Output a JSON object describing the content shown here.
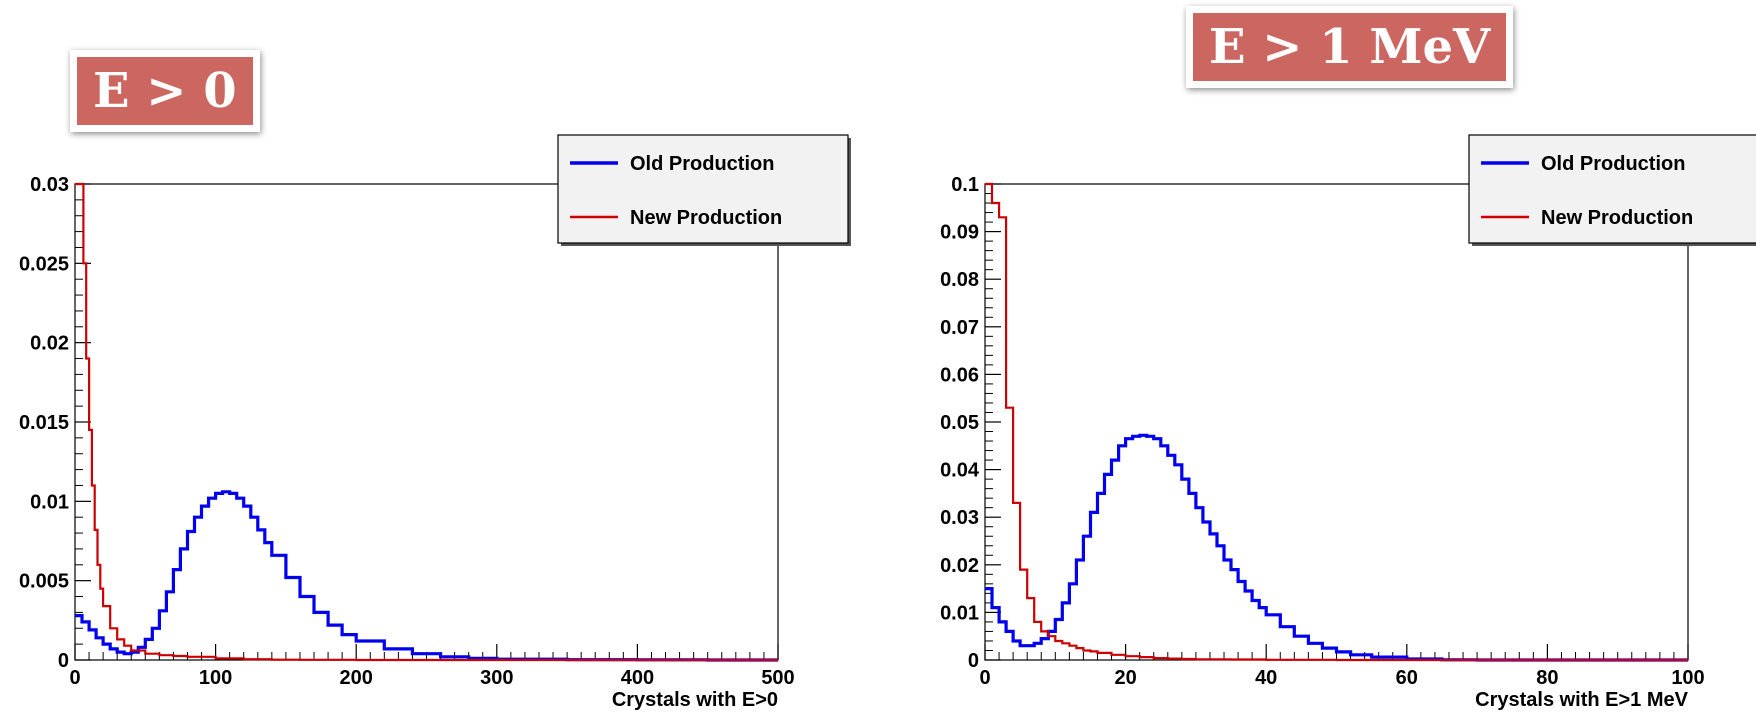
{
  "chart_data": [
    {
      "type": "line",
      "title": "E > 0",
      "xlabel": "Crystals with E>0",
      "ylabel": "",
      "xlim": [
        0,
        500
      ],
      "ylim": [
        0,
        0.03
      ],
      "xticks": [
        "0",
        "100",
        "200",
        "300",
        "400",
        "500"
      ],
      "yticks": [
        "0",
        "0.005",
        "0.01",
        "0.015",
        "0.02",
        "0.025",
        "0.03"
      ],
      "grid": false,
      "legend_position": "top-right",
      "series": [
        {
          "name": "Old Production",
          "color": "#0000ee",
          "x": [
            0,
            5,
            10,
            15,
            20,
            25,
            30,
            35,
            40,
            45,
            50,
            55,
            60,
            65,
            70,
            75,
            80,
            85,
            90,
            95,
            100,
            105,
            110,
            115,
            120,
            125,
            130,
            135,
            140,
            150,
            160,
            170,
            180,
            190,
            200,
            220,
            240,
            260,
            280,
            300,
            350,
            400,
            450,
            500
          ],
          "values": [
            0.0028,
            0.0024,
            0.0019,
            0.0014,
            0.001,
            0.0007,
            0.0005,
            0.0004,
            0.0005,
            0.0008,
            0.0013,
            0.002,
            0.0031,
            0.0043,
            0.0057,
            0.007,
            0.0081,
            0.009,
            0.0097,
            0.0102,
            0.0105,
            0.0106,
            0.0105,
            0.0102,
            0.0097,
            0.009,
            0.0082,
            0.0074,
            0.0066,
            0.0052,
            0.004,
            0.003,
            0.0022,
            0.0016,
            0.0012,
            0.0007,
            0.0004,
            0.0002,
            0.0001,
            5e-05,
            2e-05,
            1e-05,
            0,
            0
          ]
        },
        {
          "name": "New Production",
          "color": "#cc0000",
          "x": [
            0,
            2,
            4,
            6,
            8,
            10,
            12,
            14,
            16,
            18,
            20,
            25,
            30,
            35,
            40,
            50,
            60,
            70,
            80,
            100,
            120,
            140,
            160,
            200,
            300,
            400,
            500
          ],
          "values": [
            0.03,
            0.03,
            0.03,
            0.025,
            0.019,
            0.0145,
            0.011,
            0.0082,
            0.006,
            0.0045,
            0.0034,
            0.002,
            0.0013,
            0.0009,
            0.0006,
            0.0004,
            0.0003,
            0.00025,
            0.0002,
            0.0001,
            5e-05,
            2e-05,
            1e-05,
            0,
            0,
            0,
            0
          ]
        }
      ]
    },
    {
      "type": "line",
      "title": "E > 1 MeV",
      "xlabel": "Crystals with E>1 MeV",
      "ylabel": "",
      "xlim": [
        0,
        100
      ],
      "ylim": [
        0,
        0.1
      ],
      "xticks": [
        "0",
        "20",
        "40",
        "60",
        "80",
        "100"
      ],
      "yticks": [
        "0",
        "0.01",
        "0.02",
        "0.03",
        "0.04",
        "0.05",
        "0.06",
        "0.07",
        "0.08",
        "0.09",
        "0.1"
      ],
      "grid": false,
      "legend_position": "top-right",
      "series": [
        {
          "name": "Old Production",
          "color": "#0000ee",
          "x": [
            0,
            1,
            2,
            3,
            4,
            5,
            6,
            7,
            8,
            9,
            10,
            11,
            12,
            13,
            14,
            15,
            16,
            17,
            18,
            19,
            20,
            21,
            22,
            23,
            24,
            25,
            26,
            27,
            28,
            29,
            30,
            31,
            32,
            33,
            34,
            35,
            36,
            37,
            38,
            39,
            40,
            42,
            44,
            46,
            48,
            50,
            52,
            55,
            60,
            65,
            70
          ],
          "values": [
            0.015,
            0.011,
            0.008,
            0.006,
            0.004,
            0.003,
            0.003,
            0.0035,
            0.0045,
            0.006,
            0.0085,
            0.012,
            0.016,
            0.021,
            0.026,
            0.031,
            0.035,
            0.039,
            0.042,
            0.045,
            0.0465,
            0.047,
            0.0472,
            0.047,
            0.0465,
            0.045,
            0.043,
            0.041,
            0.038,
            0.035,
            0.032,
            0.029,
            0.0265,
            0.024,
            0.021,
            0.019,
            0.0165,
            0.0145,
            0.0125,
            0.011,
            0.0095,
            0.007,
            0.005,
            0.0035,
            0.0025,
            0.0017,
            0.0011,
            0.0006,
            0.0002,
            5e-05,
            0
          ]
        },
        {
          "name": "New Production",
          "color": "#cc0000",
          "x": [
            0,
            1,
            2,
            3,
            4,
            5,
            6,
            7,
            8,
            9,
            10,
            11,
            12,
            13,
            14,
            15,
            16,
            18,
            20,
            22,
            24,
            26,
            28,
            30,
            35,
            40,
            50,
            60,
            70,
            80,
            90,
            100
          ],
          "values": [
            0.1,
            0.096,
            0.093,
            0.053,
            0.033,
            0.019,
            0.013,
            0.008,
            0.006,
            0.005,
            0.004,
            0.0035,
            0.003,
            0.0025,
            0.002,
            0.0018,
            0.0015,
            0.0011,
            0.0008,
            0.0006,
            0.0004,
            0.0003,
            0.0002,
            0.00015,
            0.0001,
            5e-05,
            0,
            0,
            0,
            0,
            0,
            0
          ]
        }
      ]
    }
  ]
}
